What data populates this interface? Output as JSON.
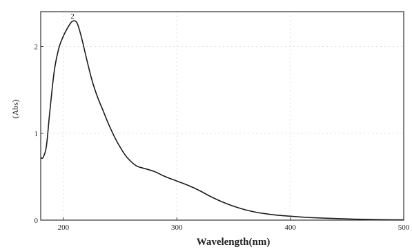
{
  "chart_data": {
    "type": "line",
    "title": "",
    "xlabel": "Wavelength(nm)",
    "ylabel": "(Abs)",
    "xlim": [
      180,
      500
    ],
    "ylim": [
      0,
      2.4
    ],
    "grid": false,
    "x_ticks": [
      "200",
      "300",
      "400",
      "500"
    ],
    "y_ticks": [
      "0",
      "1",
      "2"
    ],
    "peak_label": "2",
    "line_color": "#1a1a1a",
    "series": [
      {
        "x": [
          180,
          182,
          185,
          188,
          192,
          196,
          200,
          204,
          208,
          212,
          216,
          220,
          225,
          230,
          235,
          240,
          245,
          250,
          255,
          260,
          265,
          270,
          280,
          290,
          300,
          310,
          320,
          330,
          340,
          350,
          360,
          370,
          380,
          390,
          400,
          410,
          420,
          440,
          460,
          480,
          500
        ],
        "y": [
          0.72,
          0.72,
          0.85,
          1.25,
          1.72,
          1.98,
          2.12,
          2.22,
          2.29,
          2.27,
          2.1,
          1.88,
          1.62,
          1.42,
          1.26,
          1.1,
          0.96,
          0.84,
          0.74,
          0.67,
          0.62,
          0.6,
          0.56,
          0.5,
          0.45,
          0.4,
          0.34,
          0.27,
          0.21,
          0.16,
          0.12,
          0.09,
          0.07,
          0.055,
          0.045,
          0.035,
          0.028,
          0.018,
          0.01,
          0.005,
          0.002
        ]
      }
    ]
  }
}
